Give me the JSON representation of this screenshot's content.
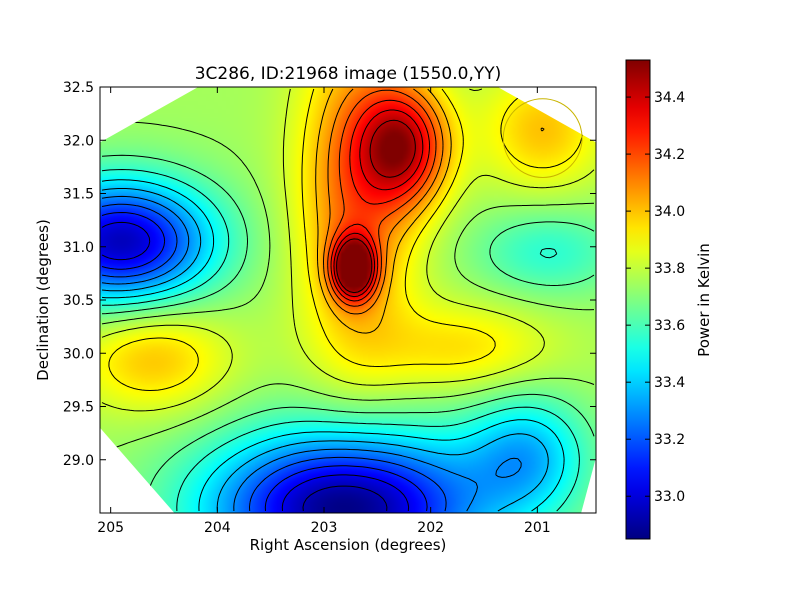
{
  "chart_data": {
    "type": "heatmap",
    "title": "3C286, ID:21968 image (1550.0,YY)",
    "xlabel": "Right Ascension (degrees)",
    "ylabel": "Declination (degrees)",
    "xlim": [
      205.1,
      200.45
    ],
    "ylim": [
      28.5,
      32.5
    ],
    "x_ticks": [
      205,
      204,
      203,
      202,
      201
    ],
    "x_tick_labels": [
      "205",
      "204",
      "203",
      "202",
      "201"
    ],
    "y_ticks": [
      29.0,
      29.5,
      30.0,
      30.5,
      31.0,
      31.5,
      32.0,
      32.5
    ],
    "y_tick_labels": [
      "29.0",
      "29.5",
      "30.0",
      "30.5",
      "31.0",
      "31.5",
      "32.0",
      "32.5"
    ],
    "colormap": "jet",
    "colorbar": {
      "label": "Power in Kelvin",
      "range": [
        32.85,
        34.53
      ],
      "ticks": [
        33.0,
        33.2,
        33.4,
        33.6,
        33.8,
        34.0,
        34.2,
        34.4
      ],
      "tick_labels": [
        "33.0",
        "33.2",
        "33.4",
        "33.6",
        "33.8",
        "34.0",
        "34.2",
        "34.4"
      ]
    },
    "contour_count": 18,
    "contour_color": "#000000",
    "background_value": 33.75,
    "features": [
      {
        "kind": "max",
        "ra": 202.72,
        "dec": 30.8,
        "value": 34.53,
        "sigma_ra": 0.14,
        "sigma_dec": 0.2
      },
      {
        "kind": "max",
        "ra": 202.25,
        "dec": 31.95,
        "value": 34.35,
        "sigma_ra": 0.3,
        "sigma_dec": 0.4
      },
      {
        "kind": "ridge",
        "ra": 202.7,
        "dec": 31.5,
        "value": 34.15,
        "sigma_ra": 0.38,
        "sigma_dec": 1.1
      },
      {
        "kind": "max",
        "ra": 204.6,
        "dec": 29.95,
        "value": 34.0,
        "sigma_ra": 0.5,
        "sigma_dec": 0.35
      },
      {
        "kind": "max",
        "ra": 201.7,
        "dec": 30.05,
        "value": 33.95,
        "sigma_ra": 0.6,
        "sigma_dec": 0.3
      },
      {
        "kind": "max",
        "ra": 200.95,
        "dec": 32.1,
        "value": 34.0,
        "sigma_ra": 0.4,
        "sigma_dec": 0.4
      },
      {
        "kind": "min",
        "ra": 204.9,
        "dec": 31.05,
        "value": 32.95,
        "sigma_ra": 0.6,
        "sigma_dec": 0.4
      },
      {
        "kind": "min",
        "ra": 202.8,
        "dec": 28.55,
        "value": 32.85,
        "sigma_ra": 0.9,
        "sigma_dec": 0.5
      },
      {
        "kind": "min",
        "ra": 201.1,
        "dec": 29.05,
        "value": 33.4,
        "sigma_ra": 0.4,
        "sigma_dec": 0.4
      },
      {
        "kind": "min",
        "ra": 200.9,
        "dec": 30.95,
        "value": 33.55,
        "sigma_ra": 0.5,
        "sigma_dec": 0.3
      }
    ],
    "footprint": "octagon",
    "marker_circle": {
      "ra": 200.95,
      "dec": 32.02,
      "radius_deg": 0.37,
      "color": "#c8b400"
    }
  }
}
